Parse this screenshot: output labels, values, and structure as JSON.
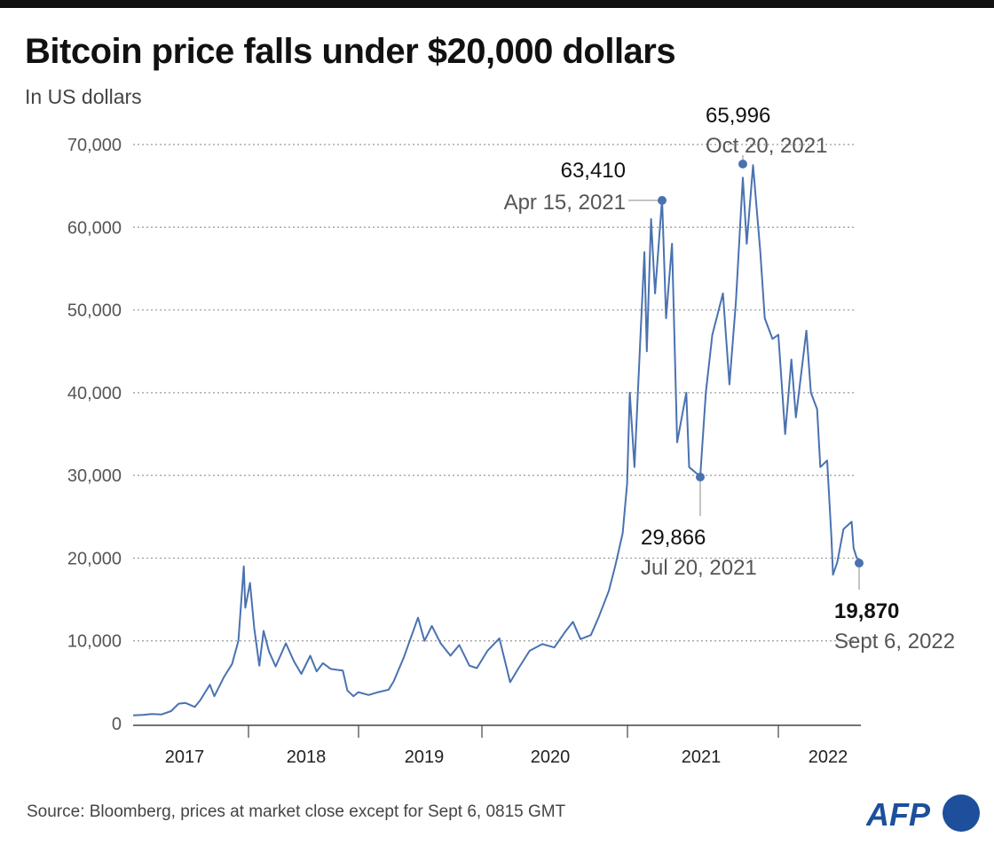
{
  "title": "Bitcoin price falls under $20,000 dollars",
  "subtitle": "In US dollars",
  "source": "Source: Bloomberg, prices at market close except for Sept 6, 0815 GMT",
  "logo": "AFP",
  "colors": {
    "line": "#4a72b0",
    "grid": "#999999",
    "logo": "#1d4f9c"
  },
  "chart_data": {
    "type": "line",
    "title": "Bitcoin price falls under $20,000 dollars",
    "ylabel": "In US dollars",
    "ylim": [
      0,
      70000
    ],
    "yticks": [
      0,
      10000,
      20000,
      30000,
      40000,
      50000,
      60000,
      70000
    ],
    "ytick_labels": [
      "0",
      "10,000",
      "20,000",
      "30,000",
      "40,000",
      "50,000",
      "60,000",
      "70,000"
    ],
    "xtick_labels": [
      "2017",
      "2018",
      "2019",
      "2020",
      "2021",
      "2022"
    ],
    "grid": "horizontal dotted",
    "series": [
      {
        "points": [
          [
            "2017-01-01",
            1000
          ],
          [
            "2017-02-01",
            1050
          ],
          [
            "2017-03-01",
            1150
          ],
          [
            "2017-04-01",
            1100
          ],
          [
            "2017-05-01",
            1500
          ],
          [
            "2017-05-25",
            2400
          ],
          [
            "2017-06-15",
            2500
          ],
          [
            "2017-07-15",
            2000
          ],
          [
            "2017-08-01",
            2800
          ],
          [
            "2017-09-01",
            4700
          ],
          [
            "2017-09-15",
            3300
          ],
          [
            "2017-10-15",
            5600
          ],
          [
            "2017-11-10",
            7200
          ],
          [
            "2017-11-30",
            10000
          ],
          [
            "2017-12-17",
            19000
          ],
          [
            "2017-12-22",
            14000
          ],
          [
            "2018-01-06",
            17000
          ],
          [
            "2018-01-20",
            11500
          ],
          [
            "2018-02-06",
            7000
          ],
          [
            "2018-02-20",
            11200
          ],
          [
            "2018-03-10",
            8700
          ],
          [
            "2018-04-01",
            6900
          ],
          [
            "2018-05-05",
            9700
          ],
          [
            "2018-06-01",
            7500
          ],
          [
            "2018-06-25",
            6000
          ],
          [
            "2018-07-25",
            8200
          ],
          [
            "2018-08-15",
            6300
          ],
          [
            "2018-09-05",
            7300
          ],
          [
            "2018-10-01",
            6600
          ],
          [
            "2018-11-10",
            6400
          ],
          [
            "2018-11-25",
            4000
          ],
          [
            "2018-12-15",
            3300
          ],
          [
            "2018-12-31",
            3800
          ],
          [
            "2019-01-31",
            3450
          ],
          [
            "2019-02-28",
            3800
          ],
          [
            "2019-03-31",
            4100
          ],
          [
            "2019-04-15",
            5100
          ],
          [
            "2019-05-15",
            8000
          ],
          [
            "2019-06-26",
            12800
          ],
          [
            "2019-07-15",
            10000
          ],
          [
            "2019-08-06",
            11800
          ],
          [
            "2019-09-01",
            9700
          ],
          [
            "2019-09-30",
            8200
          ],
          [
            "2019-10-26",
            9500
          ],
          [
            "2019-11-25",
            7000
          ],
          [
            "2019-12-17",
            6700
          ],
          [
            "2020-01-15",
            8800
          ],
          [
            "2020-02-14",
            10300
          ],
          [
            "2020-03-12",
            5000
          ],
          [
            "2020-04-01",
            6600
          ],
          [
            "2020-04-30",
            8800
          ],
          [
            "2020-06-01",
            9600
          ],
          [
            "2020-07-01",
            9200
          ],
          [
            "2020-07-27",
            11000
          ],
          [
            "2020-08-17",
            12300
          ],
          [
            "2020-09-05",
            10200
          ],
          [
            "2020-10-01",
            10700
          ],
          [
            "2020-10-21",
            12900
          ],
          [
            "2020-11-15",
            16000
          ],
          [
            "2020-12-01",
            19000
          ],
          [
            "2020-12-20",
            23000
          ],
          [
            "2020-12-31",
            29000
          ],
          [
            "2021-01-08",
            40000
          ],
          [
            "2021-01-22",
            31000
          ],
          [
            "2021-02-08",
            46000
          ],
          [
            "2021-02-21",
            57000
          ],
          [
            "2021-02-28",
            45000
          ],
          [
            "2021-03-13",
            61000
          ],
          [
            "2021-03-25",
            52000
          ],
          [
            "2021-04-15",
            63410
          ],
          [
            "2021-04-25",
            49000
          ],
          [
            "2021-05-10",
            58000
          ],
          [
            "2021-05-23",
            34000
          ],
          [
            "2021-06-15",
            40000
          ],
          [
            "2021-06-22",
            31000
          ],
          [
            "2021-07-20",
            29866
          ],
          [
            "2021-08-01",
            40000
          ],
          [
            "2021-08-15",
            47000
          ],
          [
            "2021-09-07",
            52000
          ],
          [
            "2021-09-21",
            41000
          ],
          [
            "2021-10-05",
            51000
          ],
          [
            "2021-10-20",
            65996
          ],
          [
            "2021-10-28",
            58000
          ],
          [
            "2021-11-10",
            67500
          ],
          [
            "2021-11-25",
            57000
          ],
          [
            "2021-12-04",
            49000
          ],
          [
            "2021-12-20",
            46500
          ],
          [
            "2022-01-01",
            47000
          ],
          [
            "2022-01-22",
            35000
          ],
          [
            "2022-02-10",
            44000
          ],
          [
            "2022-02-24",
            37000
          ],
          [
            "2022-03-28",
            47500
          ],
          [
            "2022-04-11",
            40000
          ],
          [
            "2022-04-30",
            38000
          ],
          [
            "2022-05-10",
            31000
          ],
          [
            "2022-05-31",
            31800
          ],
          [
            "2022-06-13",
            22500
          ],
          [
            "2022-06-18",
            18000
          ],
          [
            "2022-07-01",
            19500
          ],
          [
            "2022-07-20",
            23500
          ],
          [
            "2022-08-14",
            24400
          ],
          [
            "2022-08-20",
            21200
          ],
          [
            "2022-08-30",
            20000
          ],
          [
            "2022-09-06",
            19870
          ]
        ]
      }
    ],
    "annotations": [
      {
        "value": "63,410",
        "date": "Apr 15, 2021",
        "x": "2021-04-15",
        "y": 63410
      },
      {
        "value": "65,996",
        "date": "Oct 20, 2021",
        "x": "2021-10-20",
        "y": 65996
      },
      {
        "value": "29,866",
        "date": "Jul 20, 2021",
        "x": "2021-07-20",
        "y": 29866
      },
      {
        "value": "19,870",
        "date": "Sept 6, 2022",
        "x": "2022-09-06",
        "y": 19870
      }
    ]
  }
}
